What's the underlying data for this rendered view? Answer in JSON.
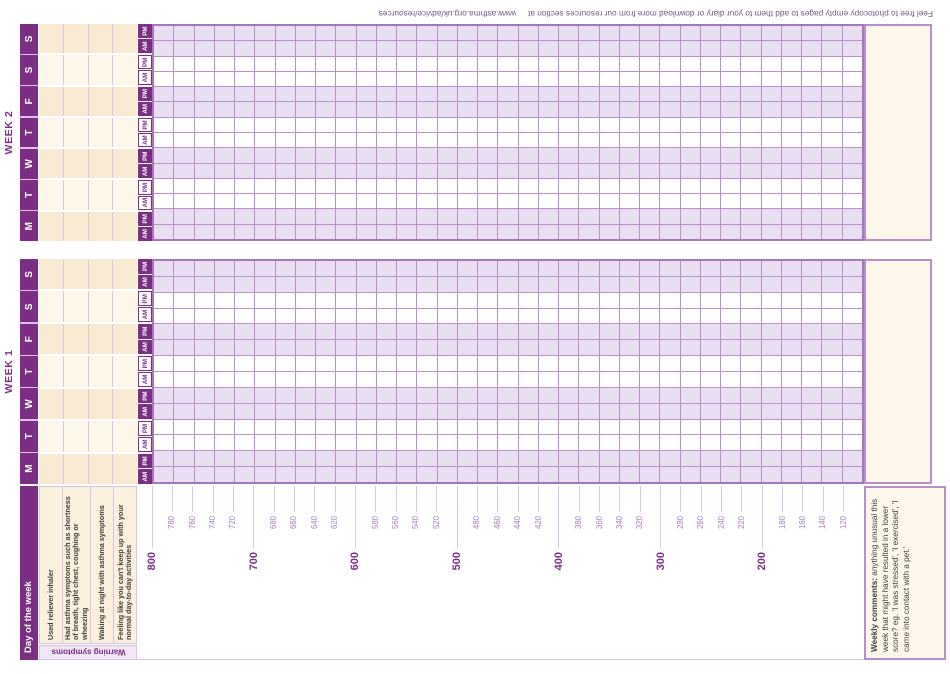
{
  "footer": {
    "text": "Feel free to photocopy empty pages to add them to your diary or download more from our resources section at",
    "url": "www.asthma.org.uk/advice/resources"
  },
  "weeks": [
    {
      "title": "WEEK 1"
    },
    {
      "title": "WEEK 2"
    }
  ],
  "days": [
    "M",
    "T",
    "W",
    "T",
    "F",
    "S",
    "S"
  ],
  "sessions": [
    "AM",
    "PM"
  ],
  "row_labels": {
    "day_of_week": "Day of the week",
    "warning_symptoms": "Warning symptoms",
    "symptoms": [
      "Used reliever inhaler",
      "Had asthma symptoms such as shortness of breath, tight chest, coughing or wheezing",
      "Waking at night with asthma symptoms",
      "Feeling like you can't keep up with your normal day-to-day activities"
    ]
  },
  "weekly_comments": {
    "label": "Weekly comments:",
    "text": "anything unusual this week that might have resulted in a lower score? eg. 'I was stressed', 'I exercised', 'I came into contact with a pet.'"
  },
  "peak_flow_scale": {
    "max": 800,
    "min": 120,
    "step": 20,
    "values": [
      800,
      780,
      760,
      740,
      720,
      700,
      680,
      660,
      640,
      620,
      600,
      580,
      560,
      540,
      520,
      500,
      480,
      460,
      440,
      420,
      400,
      380,
      360,
      340,
      320,
      300,
      280,
      260,
      240,
      220,
      200,
      180,
      160,
      140,
      120
    ],
    "major_values": [
      800,
      700,
      600,
      500,
      400,
      300,
      200
    ]
  },
  "colors": {
    "brand_purple": "#7b2e84",
    "lavender_cell": "#e9def2",
    "grid_line": "#b98fc9",
    "grid_border": "#a678b8",
    "light_divider": "#d9c3e6",
    "cream_dark": "#f8ead0",
    "cream_light": "#fdf7ea",
    "comments_bg": "#fdf7ec",
    "warning_bg": "#f0e6f6",
    "minor_scale_label": "#a87dbf",
    "footer_text": "#6e5a7e"
  }
}
